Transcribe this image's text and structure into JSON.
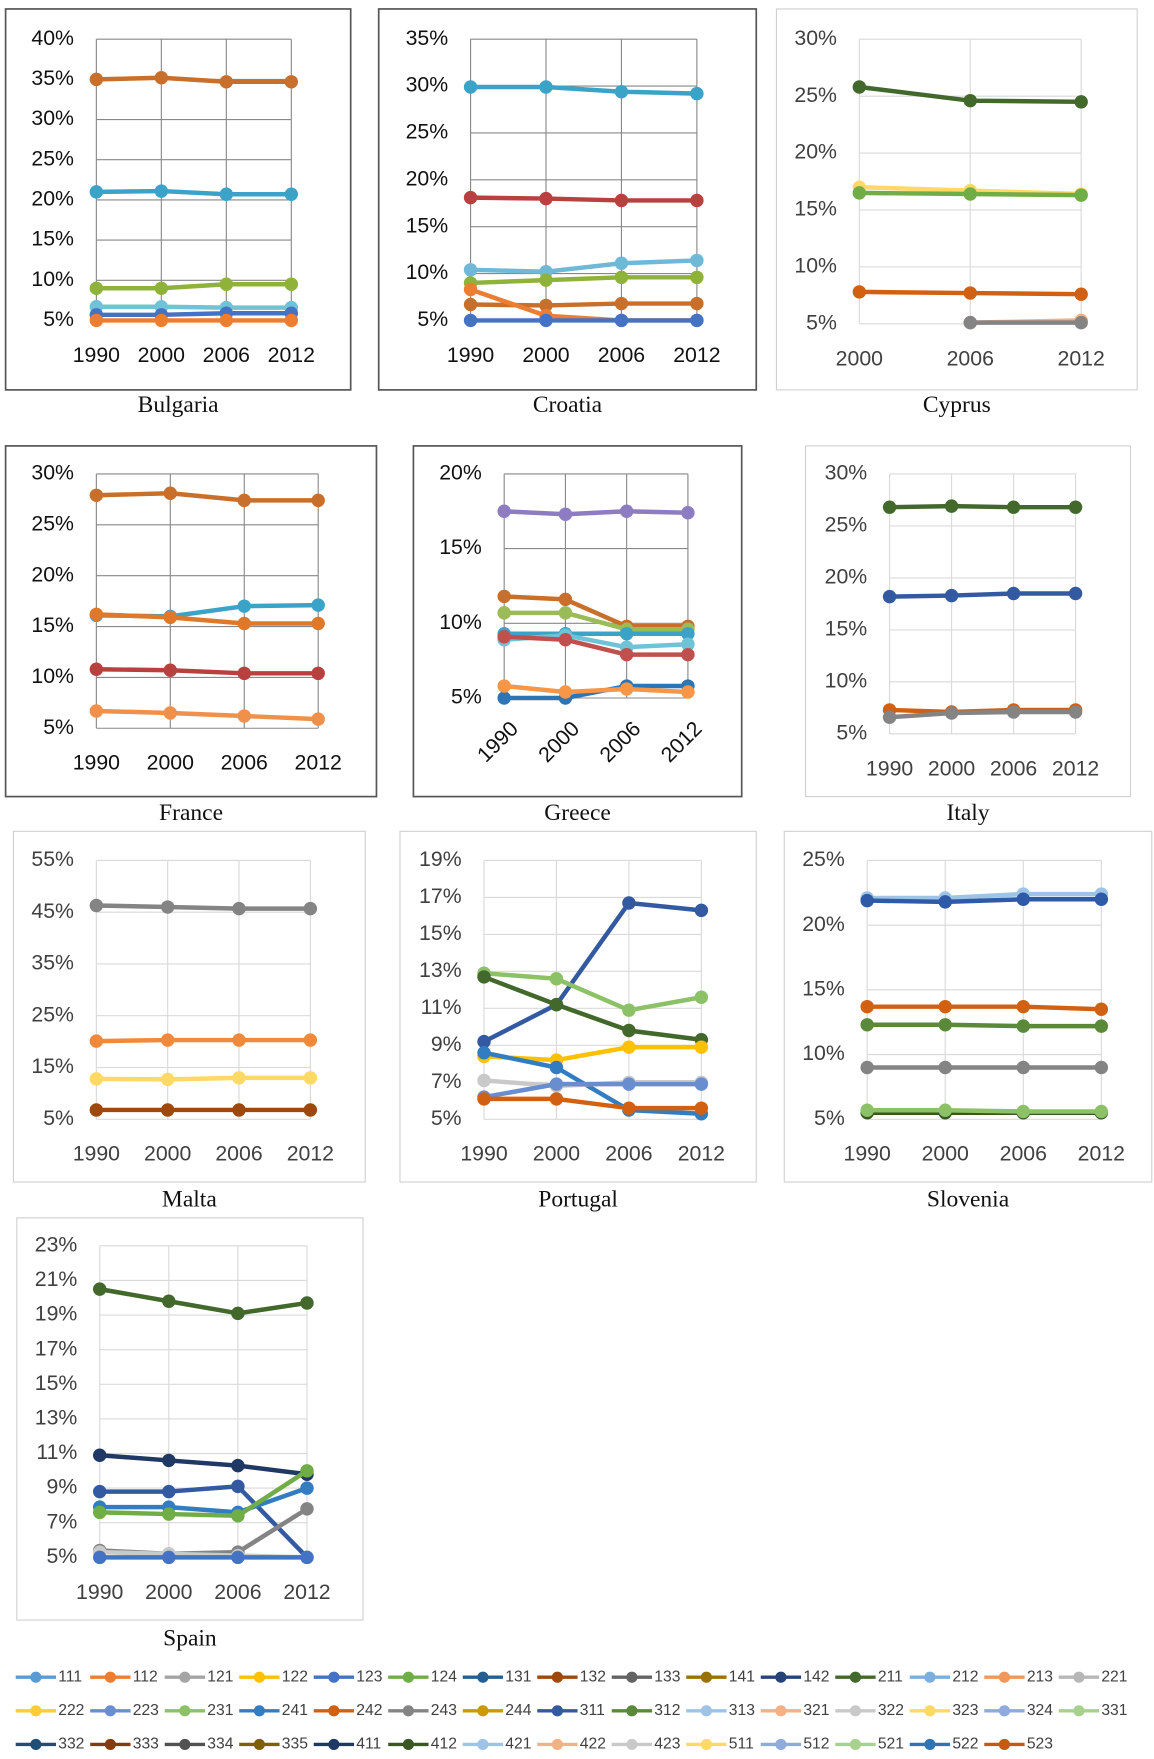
{
  "chart_data": [
    {
      "type": "line",
      "title": "Bulgaria",
      "categories": [
        "1990",
        "2000",
        "2006",
        "2012"
      ],
      "ylim": [
        5,
        40
      ],
      "grid": true,
      "yticks": [
        {
          "value": 5,
          "label": "5%"
        },
        {
          "value": 10,
          "label": "10%"
        },
        {
          "value": 15,
          "label": "15%"
        },
        {
          "value": 20,
          "label": "20%"
        },
        {
          "value": 25,
          "label": "25%"
        },
        {
          "value": 30,
          "label": "30%"
        },
        {
          "value": 35,
          "label": "35%"
        },
        {
          "value": 40,
          "label": "40%"
        }
      ],
      "series": [
        {
          "color": "#c8702b",
          "values": [
            35,
            35.2,
            34.7,
            34.7
          ]
        },
        {
          "color": "#3ba3c8",
          "values": [
            21,
            21.1,
            20.7,
            20.7
          ]
        },
        {
          "color": "#8fb33a",
          "values": [
            9,
            9,
            9.5,
            9.5
          ]
        },
        {
          "color": "#6fc3d6",
          "values": [
            6.7,
            6.7,
            6.6,
            6.6
          ]
        },
        {
          "color": "#4472c4",
          "values": [
            5.7,
            5.7,
            5.9,
            5.9
          ]
        },
        {
          "color": "#ed7d31",
          "values": [
            5,
            5,
            5,
            5
          ]
        }
      ]
    },
    {
      "type": "line",
      "title": "Croatia",
      "categories": [
        "1990",
        "2000",
        "2006",
        "2012"
      ],
      "ylim": [
        5,
        35
      ],
      "grid": true,
      "yticks": [
        {
          "value": 5,
          "label": "5%"
        },
        {
          "value": 10,
          "label": "10%"
        },
        {
          "value": 15,
          "label": "15%"
        },
        {
          "value": 20,
          "label": "20%"
        },
        {
          "value": 25,
          "label": "25%"
        },
        {
          "value": 30,
          "label": "30%"
        },
        {
          "value": 35,
          "label": "35%"
        }
      ],
      "series": [
        {
          "color": "#3ba3c8",
          "values": [
            29.9,
            29.9,
            29.4,
            29.2
          ]
        },
        {
          "color": "#b8403e",
          "values": [
            18.1,
            18,
            17.8,
            17.8
          ]
        },
        {
          "color": "#6fb8d8",
          "values": [
            10.4,
            10.2,
            11.1,
            11.4
          ]
        },
        {
          "color": "#8fb33a",
          "values": [
            9,
            9.3,
            9.6,
            9.6
          ]
        },
        {
          "color": "#c8702b",
          "values": [
            6.7,
            6.6,
            6.8,
            6.8
          ]
        },
        {
          "color": "#ed7d31",
          "values": [
            8.3,
            5.5,
            5,
            5
          ]
        },
        {
          "color": "#4472c4",
          "values": [
            5,
            5,
            5,
            5
          ]
        }
      ]
    },
    {
      "type": "line",
      "title": "Cyprus",
      "categories": [
        "2000",
        "2006",
        "2012"
      ],
      "ylim": [
        5,
        30
      ],
      "grid": true,
      "yticks": [
        {
          "value": 5,
          "label": "5%"
        },
        {
          "value": 10,
          "label": "10%"
        },
        {
          "value": 15,
          "label": "15%"
        },
        {
          "value": 20,
          "label": "20%"
        },
        {
          "value": 25,
          "label": "25%"
        },
        {
          "value": 30,
          "label": "30%"
        }
      ],
      "series": [
        {
          "color": "#43682b",
          "values": [
            25.8,
            24.6,
            24.5
          ]
        },
        {
          "color": "#ffd966",
          "values": [
            17,
            16.7,
            16.4
          ]
        },
        {
          "color": "#70ad47",
          "values": [
            16.5,
            16.4,
            16.3
          ]
        },
        {
          "color": "#d26012",
          "values": [
            7.8,
            7.7,
            7.6
          ]
        },
        {
          "color": "#f4b183",
          "values": [
            null,
            5.1,
            5.3
          ]
        },
        {
          "color": "#848484",
          "values": [
            null,
            5.1,
            5.1
          ]
        }
      ]
    },
    {
      "type": "line",
      "title": "France",
      "categories": [
        "1990",
        "2000",
        "2006",
        "2012"
      ],
      "ylim": [
        5,
        30
      ],
      "grid": true,
      "yticks": [
        {
          "value": 5,
          "label": "5%"
        },
        {
          "value": 10,
          "label": "10%"
        },
        {
          "value": 15,
          "label": "15%"
        },
        {
          "value": 20,
          "label": "20%"
        },
        {
          "value": 25,
          "label": "25%"
        },
        {
          "value": 30,
          "label": "30%"
        }
      ],
      "series": [
        {
          "color": "#c8702b",
          "values": [
            27.9,
            28.1,
            27.4,
            27.4
          ]
        },
        {
          "color": "#3ba3c8",
          "values": [
            16.1,
            16,
            17,
            17.1
          ]
        },
        {
          "color": "#e0782a",
          "values": [
            16.2,
            15.9,
            15.3,
            15.3
          ]
        },
        {
          "color": "#b8403e",
          "values": [
            10.8,
            10.7,
            10.4,
            10.4
          ]
        },
        {
          "color": "#f0904a",
          "values": [
            6.7,
            6.5,
            6.2,
            5.9
          ]
        }
      ]
    },
    {
      "type": "line",
      "title": "Greece",
      "categories": [
        "1990",
        "2000",
        "2006",
        "2012"
      ],
      "ylim": [
        5,
        20
      ],
      "grid": true,
      "yticks": [
        {
          "value": 5,
          "label": "5%"
        },
        {
          "value": 10,
          "label": "10%"
        },
        {
          "value": 15,
          "label": "15%"
        },
        {
          "value": 20,
          "label": "20%"
        }
      ],
      "series": [
        {
          "color": "#8e7cc3",
          "values": [
            17.5,
            17.3,
            17.5,
            17.4
          ]
        },
        {
          "color": "#c8702b",
          "values": [
            11.8,
            11.6,
            9.8,
            9.8
          ]
        },
        {
          "color": "#9bbb59",
          "values": [
            10.7,
            10.7,
            9.6,
            9.6
          ]
        },
        {
          "color": "#3ba3c8",
          "values": [
            9.3,
            9.3,
            9.3,
            9.3
          ]
        },
        {
          "color": "#6fc3d6",
          "values": [
            8.9,
            9.2,
            8.4,
            8.6
          ]
        },
        {
          "color": "#c0504d",
          "values": [
            9.1,
            8.9,
            7.9,
            7.9
          ]
        },
        {
          "color": "#2e75b6",
          "values": [
            5,
            5,
            5.8,
            5.8
          ]
        },
        {
          "color": "#f79646",
          "values": [
            5.8,
            5.4,
            5.6,
            5.4
          ]
        }
      ]
    },
    {
      "type": "line",
      "title": "Italy",
      "categories": [
        "1990",
        "2000",
        "2006",
        "2012"
      ],
      "ylim": [
        5,
        30
      ],
      "grid": true,
      "yticks": [
        {
          "value": 5,
          "label": "5%"
        },
        {
          "value": 10,
          "label": "10%"
        },
        {
          "value": 15,
          "label": "15%"
        },
        {
          "value": 20,
          "label": "20%"
        },
        {
          "value": 25,
          "label": "25%"
        },
        {
          "value": 30,
          "label": "30%"
        }
      ],
      "series": [
        {
          "color": "#43682b",
          "values": [
            26.8,
            26.9,
            26.8,
            26.8
          ]
        },
        {
          "color": "#335aa1",
          "values": [
            18.2,
            18.3,
            18.5,
            18.5
          ]
        },
        {
          "color": "#d26012",
          "values": [
            7.3,
            7.1,
            7.3,
            7.3
          ]
        },
        {
          "color": "#848484",
          "values": [
            6.6,
            7,
            7.1,
            7.1
          ]
        }
      ]
    },
    {
      "type": "line",
      "title": "Malta",
      "categories": [
        "1990",
        "2000",
        "2006",
        "2012"
      ],
      "ylim": [
        5,
        55
      ],
      "grid": true,
      "yticks": [
        {
          "value": 5,
          "label": "5%"
        },
        {
          "value": 15,
          "label": "15%"
        },
        {
          "value": 25,
          "label": "25%"
        },
        {
          "value": 35,
          "label": "35%"
        },
        {
          "value": 45,
          "label": "45%"
        },
        {
          "value": 55,
          "label": "55%"
        }
      ],
      "series": [
        {
          "color": "#848484",
          "values": [
            46.3,
            46,
            45.7,
            45.7
          ]
        },
        {
          "color": "#f1893a",
          "values": [
            20.1,
            20.3,
            20.3,
            20.3
          ]
        },
        {
          "color": "#ffd966",
          "values": [
            12.8,
            12.7,
            13,
            13
          ]
        },
        {
          "color": "#9e480e",
          "values": [
            6.8,
            6.8,
            6.8,
            6.8
          ]
        }
      ]
    },
    {
      "type": "line",
      "title": "Portugal",
      "categories": [
        "1990",
        "2000",
        "2006",
        "2012"
      ],
      "ylim": [
        5,
        19
      ],
      "grid": true,
      "yticks": [
        {
          "value": 5,
          "label": "5%"
        },
        {
          "value": 7,
          "label": "7%"
        },
        {
          "value": 9,
          "label": "9%"
        },
        {
          "value": 11,
          "label": "11%"
        },
        {
          "value": 13,
          "label": "13%"
        },
        {
          "value": 15,
          "label": "15%"
        },
        {
          "value": 17,
          "label": "17%"
        },
        {
          "value": 19,
          "label": "19%"
        }
      ],
      "series": [
        {
          "color": "#335aa1",
          "values": [
            9.2,
            11.2,
            16.7,
            16.3
          ]
        },
        {
          "color": "#8cc168",
          "values": [
            12.9,
            12.6,
            10.9,
            11.6
          ]
        },
        {
          "color": "#43682b",
          "values": [
            12.7,
            11.2,
            9.8,
            9.3
          ]
        },
        {
          "color": "#ffc000",
          "values": [
            8.4,
            8.2,
            8.9,
            8.9
          ]
        },
        {
          "color": "#327dc2",
          "values": [
            8.6,
            7.8,
            5.5,
            5.3
          ]
        },
        {
          "color": "#c9c9c9",
          "values": [
            7.1,
            6.8,
            7,
            7
          ]
        },
        {
          "color": "#698ed0",
          "values": [
            6.2,
            6.9,
            6.9,
            6.9
          ]
        },
        {
          "color": "#d26012",
          "values": [
            6.1,
            6.1,
            5.6,
            5.6
          ]
        }
      ]
    },
    {
      "type": "line",
      "title": "Slovenia",
      "categories": [
        "1990",
        "2000",
        "2006",
        "2012"
      ],
      "ylim": [
        5,
        25
      ],
      "grid": true,
      "yticks": [
        {
          "value": 5,
          "label": "5%"
        },
        {
          "value": 10,
          "label": "10%"
        },
        {
          "value": 15,
          "label": "15%"
        },
        {
          "value": 20,
          "label": "20%"
        },
        {
          "value": 25,
          "label": "25%"
        }
      ],
      "series": [
        {
          "color": "#9dc3e6",
          "values": [
            22.1,
            22.1,
            22.4,
            22.4
          ]
        },
        {
          "color": "#2e5aa8",
          "values": [
            21.9,
            21.8,
            22,
            22
          ]
        },
        {
          "color": "#d26012",
          "values": [
            13.7,
            13.7,
            13.7,
            13.5
          ]
        },
        {
          "color": "#5a8a39",
          "values": [
            12.3,
            12.3,
            12.2,
            12.2
          ]
        },
        {
          "color": "#848484",
          "values": [
            9,
            9,
            9,
            9
          ]
        },
        {
          "color": "#385723",
          "values": [
            5.5,
            5.5,
            5.5,
            5.5
          ]
        },
        {
          "color": "#8cc168",
          "values": [
            5.7,
            5.7,
            5.6,
            5.6
          ]
        }
      ]
    },
    {
      "type": "line",
      "title": "Spain",
      "categories": [
        "1990",
        "2000",
        "2006",
        "2012"
      ],
      "ylim": [
        5,
        23
      ],
      "grid": true,
      "yticks": [
        {
          "value": 5,
          "label": "5%"
        },
        {
          "value": 7,
          "label": "7%"
        },
        {
          "value": 9,
          "label": "9%"
        },
        {
          "value": 11,
          "label": "11%"
        },
        {
          "value": 13,
          "label": "13%"
        },
        {
          "value": 15,
          "label": "15%"
        },
        {
          "value": 17,
          "label": "17%"
        },
        {
          "value": 19,
          "label": "19%"
        },
        {
          "value": 21,
          "label": "21%"
        },
        {
          "value": 23,
          "label": "23%"
        }
      ],
      "series": [
        {
          "color": "#43682b",
          "values": [
            20.5,
            19.8,
            19.1,
            19.7
          ]
        },
        {
          "color": "#203864",
          "values": [
            10.9,
            10.6,
            10.3,
            9.8
          ]
        },
        {
          "color": "#335aa1",
          "values": [
            8.8,
            8.8,
            9.1,
            5
          ]
        },
        {
          "color": "#327dc2",
          "values": [
            7.9,
            7.9,
            7.6,
            9
          ]
        },
        {
          "color": "#70ad47",
          "values": [
            7.6,
            7.5,
            7.4,
            10
          ]
        },
        {
          "color": "#848484",
          "values": [
            5.4,
            5.2,
            5.3,
            7.8
          ]
        },
        {
          "color": "#c9c9c9",
          "values": [
            5.3,
            5.2,
            5.1,
            5
          ]
        },
        {
          "color": "#4472c4",
          "values": [
            5,
            5,
            5,
            5
          ]
        }
      ]
    }
  ],
  "legend": [
    {
      "name": "111",
      "color": "#5b9bd5"
    },
    {
      "name": "112",
      "color": "#ed7d31"
    },
    {
      "name": "121",
      "color": "#a5a5a5"
    },
    {
      "name": "122",
      "color": "#ffc000"
    },
    {
      "name": "123",
      "color": "#4472c4"
    },
    {
      "name": "124",
      "color": "#70ad47"
    },
    {
      "name": "131",
      "color": "#255e91"
    },
    {
      "name": "132",
      "color": "#9e480e"
    },
    {
      "name": "133",
      "color": "#636363"
    },
    {
      "name": "141",
      "color": "#997300"
    },
    {
      "name": "142",
      "color": "#264478"
    },
    {
      "name": "211",
      "color": "#43682b"
    },
    {
      "name": "212",
      "color": "#7cafdd"
    },
    {
      "name": "213",
      "color": "#f1975a"
    },
    {
      "name": "221",
      "color": "#b7b7b7"
    },
    {
      "name": "222",
      "color": "#ffcd33"
    },
    {
      "name": "223",
      "color": "#698ed0"
    },
    {
      "name": "231",
      "color": "#8cc168"
    },
    {
      "name": "241",
      "color": "#327dc2"
    },
    {
      "name": "242",
      "color": "#d26012"
    },
    {
      "name": "243",
      "color": "#848484"
    },
    {
      "name": "244",
      "color": "#cc9a00"
    },
    {
      "name": "311",
      "color": "#335aa1"
    },
    {
      "name": "312",
      "color": "#5a8a39"
    },
    {
      "name": "313",
      "color": "#9dc3e6"
    },
    {
      "name": "321",
      "color": "#f4b183"
    },
    {
      "name": "322",
      "color": "#c9c9c9"
    },
    {
      "name": "323",
      "color": "#ffd966"
    },
    {
      "name": "324",
      "color": "#8faadc"
    },
    {
      "name": "331",
      "color": "#a9d18e"
    },
    {
      "name": "332",
      "color": "#1f4e79"
    },
    {
      "name": "333",
      "color": "#843c0c"
    },
    {
      "name": "334",
      "color": "#525252"
    },
    {
      "name": "335",
      "color": "#7f6000"
    },
    {
      "name": "411",
      "color": "#203864"
    },
    {
      "name": "412",
      "color": "#385723"
    },
    {
      "name": "421",
      "color": "#9dc3e6"
    },
    {
      "name": "422",
      "color": "#f4b183"
    },
    {
      "name": "423",
      "color": "#c9c9c9"
    },
    {
      "name": "511",
      "color": "#ffd966"
    },
    {
      "name": "512",
      "color": "#8faadc"
    },
    {
      "name": "521",
      "color": "#a9d18e"
    },
    {
      "name": "522",
      "color": "#2e75b6"
    },
    {
      "name": "523",
      "color": "#c55a11"
    }
  ]
}
